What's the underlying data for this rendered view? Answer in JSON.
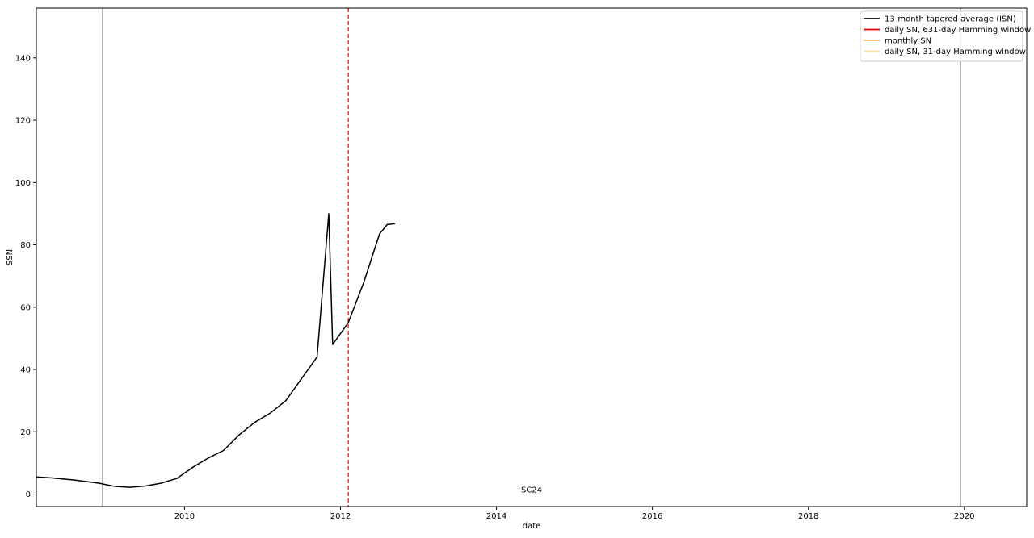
{
  "chart_data": {
    "type": "line",
    "title": "",
    "xlabel": "date",
    "ylabel": "SSN",
    "xlim": [
      2008.1,
      2020.8
    ],
    "ylim": [
      -4,
      156
    ],
    "x_ticks": [
      2010,
      2012,
      2014,
      2016,
      2018,
      2020
    ],
    "y_ticks": [
      0,
      20,
      40,
      60,
      80,
      100,
      120,
      140
    ],
    "grid": false,
    "legend_position": "top-right",
    "cycle_label": {
      "text": "SC24",
      "x": 2014.45,
      "y": 0.5
    },
    "cycle_boundaries": [
      2008.95,
      2019.95
    ],
    "maximum_marker": 2012.1,
    "series": [
      {
        "name": "13-month tapered average (ISN)",
        "color": "#000000",
        "style": "solid",
        "opacity": 1,
        "width": 1.5,
        "points": [
          [
            2008.1,
            5.5
          ],
          [
            2008.3,
            5.2
          ],
          [
            2008.6,
            4.5
          ],
          [
            2008.9,
            3.5
          ],
          [
            2009.1,
            2.5
          ],
          [
            2009.3,
            2.2
          ],
          [
            2009.5,
            2.6
          ],
          [
            2009.7,
            3.5
          ],
          [
            2009.9,
            5
          ],
          [
            2010.1,
            8.5
          ],
          [
            2010.3,
            11.5
          ],
          [
            2010.5,
            14
          ],
          [
            2010.7,
            19
          ],
          [
            2010.9,
            23
          ],
          [
            2011.1,
            26
          ],
          [
            2011.3,
            30
          ],
          [
            2011.5,
            37
          ],
          [
            2011.7,
            44
          ],
          [
            2011.9,
            48
          ],
          [
            2012.1,
            55
          ],
          [
            2012.3,
            68
          ],
          [
            2012.5,
            83.5
          ],
          [
            2012.6,
            86.5
          ],
          [
            2012.7,
            86.8
          ],
          [
            2011.85,
            90
          ]
        ]
      }
    ]
  },
  "legend": {
    "items": [
      {
        "label": "13-month tapered average (ISN)",
        "color": "#000000",
        "opacity": 1
      },
      {
        "label": "daily SN, 631-day Hamming window",
        "color": "#e00000",
        "opacity": 1
      },
      {
        "label": "monthly SN",
        "color": "#f5a623",
        "opacity": 0.75
      },
      {
        "label": "daily SN, 31-day Hamming window",
        "color": "#f5a623",
        "opacity": 0.35
      }
    ]
  }
}
